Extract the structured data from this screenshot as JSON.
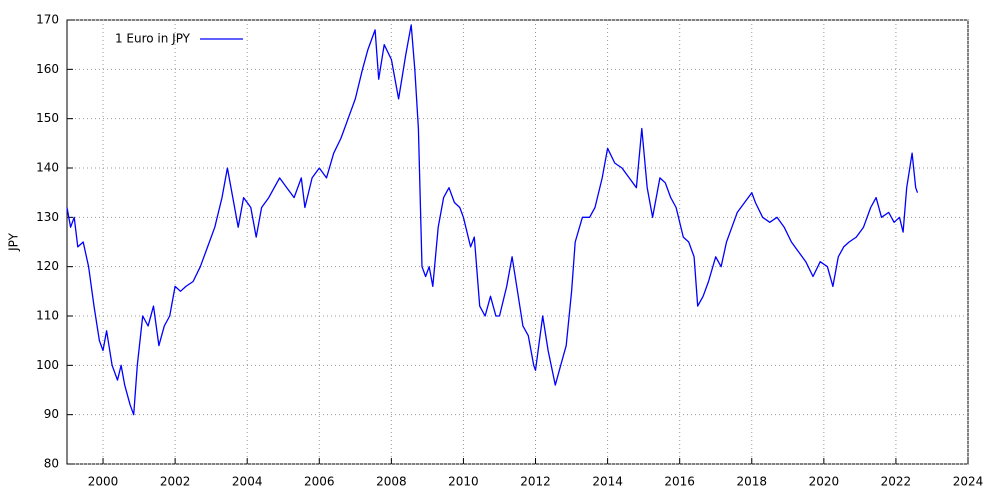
{
  "chart_data": {
    "type": "line",
    "ylabel": "JPY",
    "xlim": [
      1999,
      2024
    ],
    "xticks": [
      2000,
      2002,
      2004,
      2006,
      2008,
      2010,
      2012,
      2014,
      2016,
      2018,
      2020,
      2022,
      2024
    ],
    "ylim": [
      80,
      170
    ],
    "yticks": [
      80,
      90,
      100,
      110,
      120,
      130,
      140,
      150,
      160,
      170
    ],
    "grid": true,
    "legend": "upper left",
    "x": [
      1999.0,
      1999.1,
      1999.2,
      1999.3,
      1999.45,
      1999.6,
      1999.75,
      1999.9,
      2000.0,
      2000.1,
      2000.25,
      2000.4,
      2000.5,
      2000.6,
      2000.75,
      2000.85,
      2000.95,
      2001.1,
      2001.25,
      2001.4,
      2001.55,
      2001.7,
      2001.85,
      2002.0,
      2002.15,
      2002.3,
      2002.5,
      2002.7,
      2002.9,
      2003.1,
      2003.3,
      2003.45,
      2003.6,
      2003.75,
      2003.9,
      2004.1,
      2004.25,
      2004.4,
      2004.6,
      2004.75,
      2004.9,
      2005.1,
      2005.3,
      2005.5,
      2005.6,
      2005.8,
      2006.0,
      2006.2,
      2006.4,
      2006.6,
      2006.8,
      2007.0,
      2007.2,
      2007.35,
      2007.55,
      2007.65,
      2007.8,
      2008.0,
      2008.2,
      2008.4,
      2008.55,
      2008.65,
      2008.75,
      2008.85,
      2008.95,
      2009.05,
      2009.15,
      2009.3,
      2009.45,
      2009.6,
      2009.75,
      2009.9,
      2010.0,
      2010.2,
      2010.3,
      2010.45,
      2010.6,
      2010.75,
      2010.9,
      2011.0,
      2011.2,
      2011.35,
      2011.5,
      2011.65,
      2011.8,
      2011.95,
      2012.0,
      2012.2,
      2012.35,
      2012.55,
      2012.7,
      2012.85,
      2013.0,
      2013.1,
      2013.3,
      2013.5,
      2013.65,
      2013.85,
      2014.0,
      2014.2,
      2014.4,
      2014.6,
      2014.8,
      2014.95,
      2015.1,
      2015.25,
      2015.45,
      2015.6,
      2015.75,
      2015.9,
      2016.1,
      2016.25,
      2016.4,
      2016.5,
      2016.65,
      2016.8,
      2017.0,
      2017.15,
      2017.3,
      2017.45,
      2017.6,
      2017.8,
      2018.0,
      2018.1,
      2018.3,
      2018.5,
      2018.7,
      2018.9,
      2019.1,
      2019.3,
      2019.5,
      2019.7,
      2019.9,
      2020.1,
      2020.25,
      2020.4,
      2020.55,
      2020.7,
      2020.9,
      2021.1,
      2021.3,
      2021.45,
      2021.6,
      2021.8,
      2021.95,
      2022.1,
      2022.2,
      2022.3,
      2022.45,
      2022.55,
      2022.6
    ],
    "series": [
      {
        "name": "1 Euro in JPY",
        "color": "#0000ff",
        "values": [
          132,
          128,
          130,
          124,
          125,
          120,
          112,
          105,
          103,
          107,
          100,
          97,
          100,
          96,
          92,
          90,
          100,
          110,
          108,
          112,
          104,
          108,
          110,
          116,
          115,
          116,
          117,
          120,
          124,
          128,
          134,
          140,
          134,
          128,
          134,
          132,
          126,
          132,
          134,
          136,
          138,
          136,
          134,
          138,
          132,
          138,
          140,
          138,
          143,
          146,
          150,
          154,
          160,
          164,
          168,
          158,
          165,
          162,
          154,
          163,
          169,
          160,
          148,
          120,
          118,
          120,
          116,
          128,
          134,
          136,
          133,
          132,
          130,
          124,
          126,
          112,
          110,
          114,
          110,
          110,
          116,
          122,
          115,
          108,
          106,
          100,
          99,
          110,
          103,
          96,
          100,
          104,
          115,
          125,
          130,
          130,
          132,
          138,
          144,
          141,
          140,
          138,
          136,
          148,
          136,
          130,
          138,
          137,
          134,
          132,
          126,
          125,
          122,
          112,
          114,
          117,
          122,
          120,
          125,
          128,
          131,
          133,
          135,
          133,
          130,
          129,
          130,
          128,
          125,
          123,
          121,
          118,
          121,
          120,
          116,
          122,
          124,
          125,
          126,
          128,
          132,
          134,
          130,
          131,
          129,
          130,
          127,
          136,
          143,
          136,
          135
        ]
      }
    ]
  }
}
